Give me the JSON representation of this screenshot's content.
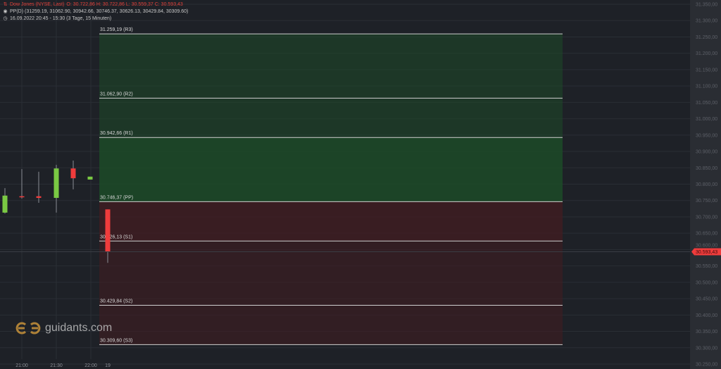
{
  "legend": {
    "instrument": "Dow Jones (NYSE, Last)",
    "ohlc": "O: 30.722,86  H: 30.722,86  L: 30.559,37  C: 30.593,43",
    "indicator": "PP(D)  (31259.19, 31062.90, 30942.66, 30746.37, 30626.13, 30429.84, 30309.60)",
    "period": "16.09.2022 20:45 - 15:30   (3 Tage, 15 Minuten)",
    "icons": [
      "candles-icon",
      "indicator-icon",
      "clock-icon"
    ]
  },
  "logo": {
    "text": "guidants.com"
  },
  "colors": {
    "up": "#7ac943",
    "down": "#f03c3c",
    "resistance_zone": "#1d4a28",
    "support_zone": "#3f1c22",
    "background": "#1e2127",
    "axis": "#2a2d33"
  },
  "chart_data": {
    "type": "candlestick",
    "ylim": [
      30250,
      31350
    ],
    "y_ticks": [
      "31.350,00",
      "31.300,00",
      "31.250,00",
      "31.200,00",
      "31.150,00",
      "31.100,00",
      "31.050,00",
      "31.000,00",
      "30.950,00",
      "30.900,00",
      "30.850,00",
      "30.800,00",
      "30.750,00",
      "30.700,00",
      "30.650,00",
      "30.600,00",
      "30.550,00",
      "30.500,00",
      "30.450,00",
      "30.400,00",
      "30.350,00",
      "30.300,00",
      "30.250,00"
    ],
    "x_ticks": [
      "21:00",
      "21:30",
      "22:00",
      "19"
    ],
    "grid": true,
    "candles": [
      {
        "o": 30713,
        "h": 30788,
        "l": 30710,
        "c": 30765
      },
      {
        "o": 30763,
        "h": 30846,
        "l": 30756,
        "c": 30761
      },
      {
        "o": 30763,
        "h": 30838,
        "l": 30743,
        "c": 30758
      },
      {
        "o": 30758,
        "h": 30859,
        "l": 30713,
        "c": 30848
      },
      {
        "o": 30848,
        "h": 30872,
        "l": 30784,
        "c": 30818
      },
      {
        "o": 30814,
        "h": 30823,
        "l": 30814,
        "c": 30823
      },
      {
        "o": 30722.86,
        "h": 30722.86,
        "l": 30559.37,
        "c": 30593.43
      }
    ],
    "last_price": {
      "value": 30593.43,
      "label": "30.593,43"
    },
    "pivots": [
      {
        "value": 31259.19,
        "label": "31.259,19 (R3)"
      },
      {
        "value": 31062.9,
        "label": "31.062,90 (R2)"
      },
      {
        "value": 30942.66,
        "label": "30.942,66 (R1)"
      },
      {
        "value": 30746.37,
        "label": "30.746,37 (PP)"
      },
      {
        "value": 30626.13,
        "label": "30.626,13 (S1)"
      },
      {
        "value": 30429.84,
        "label": "30.429,84 (S2)"
      },
      {
        "value": 30309.6,
        "label": "30.309,60 (S3)"
      }
    ]
  }
}
